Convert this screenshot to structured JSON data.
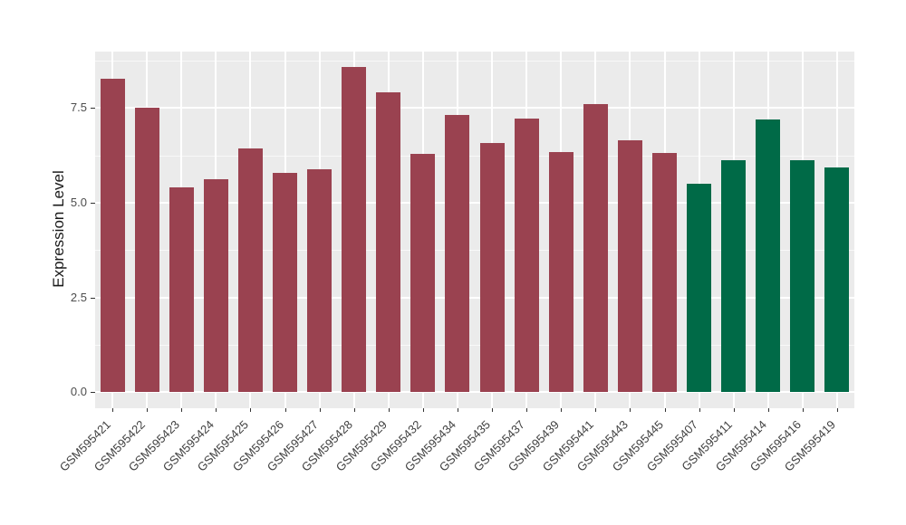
{
  "chart_data": {
    "type": "bar",
    "title": "",
    "xlabel": "",
    "ylabel": "Expression Level",
    "categories": [
      "GSM595421",
      "GSM595422",
      "GSM595423",
      "GSM595424",
      "GSM595425",
      "GSM595426",
      "GSM595427",
      "GSM595428",
      "GSM595429",
      "GSM595432",
      "GSM595434",
      "GSM595435",
      "GSM595437",
      "GSM595439",
      "GSM595441",
      "GSM595443",
      "GSM595445",
      "GSM595407",
      "GSM595411",
      "GSM595414",
      "GSM595416",
      "GSM595419"
    ],
    "values": [
      8.28,
      7.5,
      5.41,
      5.61,
      6.44,
      5.79,
      5.87,
      8.57,
      7.91,
      6.29,
      7.31,
      6.58,
      7.21,
      6.34,
      7.61,
      6.64,
      6.3,
      5.5,
      6.13,
      7.2,
      6.11,
      5.94
    ],
    "bar_groups": [
      "red",
      "red",
      "red",
      "red",
      "red",
      "red",
      "red",
      "red",
      "red",
      "red",
      "red",
      "red",
      "red",
      "red",
      "red",
      "red",
      "red",
      "green",
      "green",
      "green",
      "green",
      "green"
    ],
    "group_colors": {
      "red": "#9A4250",
      "green": "#006A47"
    },
    "ylim": [
      0,
      8.99
    ],
    "yticks": [
      0,
      2.5,
      5,
      7.5
    ],
    "ytick_labels": [
      "0.0",
      "2.5",
      "5.0",
      "7.5"
    ],
    "y_minor_ticks": [
      1.25,
      3.75,
      6.25,
      8.75
    ],
    "grid": true,
    "legend": "none",
    "panel_bg": "#EBEBEB",
    "grid_color": "#FFFFFF",
    "axis_text_color": "#4D4D4D",
    "axis_title_color": "#1A1A1A",
    "tick_color": "#333333"
  }
}
